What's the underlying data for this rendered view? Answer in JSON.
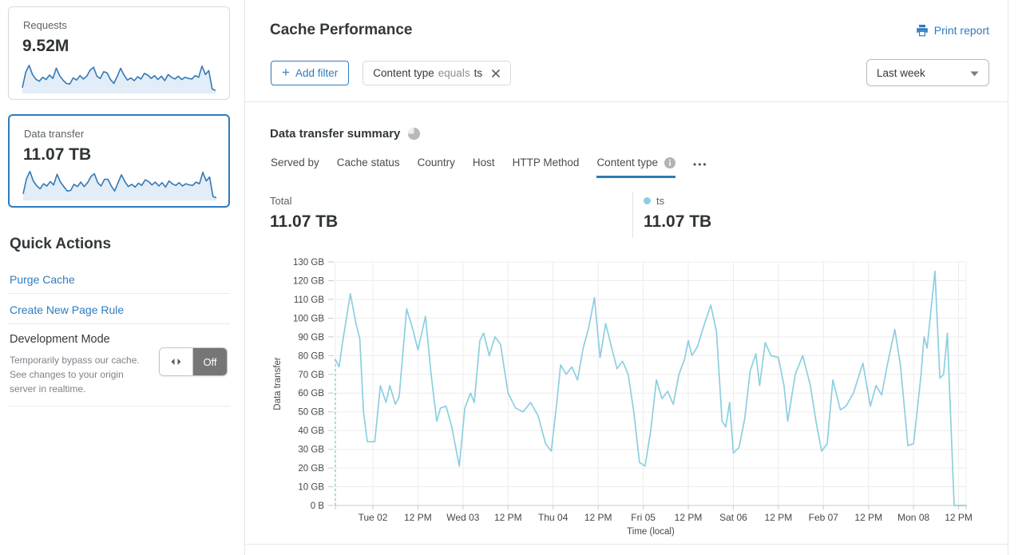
{
  "header": {
    "title": "Cache Performance",
    "print_label": "Print report"
  },
  "filters": {
    "add_label": "Add filter",
    "chips": [
      {
        "field": "Content type",
        "operator": "equals",
        "value": "ts"
      }
    ],
    "range_selected": "Last week"
  },
  "sidebar": {
    "cards": [
      {
        "label": "Requests",
        "value": "9.52M",
        "selected": false
      },
      {
        "label": "Data transfer",
        "value": "11.07 TB",
        "selected": true
      }
    ],
    "sparklines": {
      "requests": [
        15,
        70,
        95,
        62,
        45,
        38,
        52,
        44,
        60,
        48,
        85,
        58,
        42,
        30,
        28,
        50,
        42,
        58,
        46,
        56,
        78,
        88,
        56,
        48,
        72,
        68,
        44,
        30,
        56,
        84,
        60,
        42,
        50,
        40,
        54,
        46,
        66,
        60,
        48,
        58,
        44,
        56,
        40,
        62,
        52,
        46,
        56,
        44,
        52,
        48,
        46,
        58,
        52,
        92,
        62,
        76,
        10,
        5
      ],
      "data_transfer": [
        18,
        72,
        98,
        64,
        47,
        36,
        54,
        46,
        62,
        50,
        88,
        60,
        44,
        28,
        30,
        52,
        44,
        60,
        44,
        58,
        80,
        90,
        58,
        46,
        70,
        70,
        46,
        28,
        58,
        86,
        62,
        44,
        52,
        42,
        56,
        48,
        68,
        62,
        50,
        60,
        46,
        58,
        42,
        64,
        54,
        48,
        58,
        46,
        54,
        50,
        48,
        60,
        54,
        95,
        64,
        78,
        8,
        4
      ]
    },
    "quick_actions": {
      "heading": "Quick Actions",
      "links": [
        {
          "label": "Purge Cache"
        },
        {
          "label": "Create New Page Rule"
        }
      ],
      "dev_mode": {
        "title": "Development Mode",
        "description": "Temporarily bypass our cache. See changes to your origin server in realtime.",
        "toggle_state": "Off"
      }
    }
  },
  "summary": {
    "heading": "Data transfer summary",
    "tabs": [
      {
        "label": "Served by",
        "active": false
      },
      {
        "label": "Cache status",
        "active": false
      },
      {
        "label": "Country",
        "active": false
      },
      {
        "label": "Host",
        "active": false
      },
      {
        "label": "HTTP Method",
        "active": false
      },
      {
        "label": "Content type",
        "active": true,
        "has_info": true
      }
    ],
    "more_label": "•••",
    "total": {
      "label": "Total",
      "value": "11.07 TB"
    },
    "legend": [
      {
        "label": "ts",
        "value": "11.07 TB",
        "color": "#8ccfe0"
      }
    ]
  },
  "chart_data": {
    "type": "line",
    "title": "Data transfer summary",
    "xlabel": "Time (local)",
    "ylabel": "Data transfer",
    "x_range_hours": [
      0,
      168
    ],
    "ylim_gb": [
      0,
      130
    ],
    "grid": true,
    "leading_dashed_dropline": true,
    "y_ticks": [
      {
        "gb": 0,
        "label": "0 B"
      },
      {
        "gb": 10,
        "label": "10 GB"
      },
      {
        "gb": 20,
        "label": "20 GB"
      },
      {
        "gb": 30,
        "label": "30 GB"
      },
      {
        "gb": 40,
        "label": "40 GB"
      },
      {
        "gb": 50,
        "label": "50 GB"
      },
      {
        "gb": 60,
        "label": "60 GB"
      },
      {
        "gb": 70,
        "label": "70 GB"
      },
      {
        "gb": 80,
        "label": "80 GB"
      },
      {
        "gb": 90,
        "label": "90 GB"
      },
      {
        "gb": 100,
        "label": "100 GB"
      },
      {
        "gb": 110,
        "label": "110 GB"
      },
      {
        "gb": 120,
        "label": "120 GB"
      },
      {
        "gb": 130,
        "label": "130 GB"
      }
    ],
    "x_ticks": [
      {
        "hour": 10,
        "label": "Tue 02"
      },
      {
        "hour": 22,
        "label": "12 PM"
      },
      {
        "hour": 34,
        "label": "Wed 03"
      },
      {
        "hour": 46,
        "label": "12 PM"
      },
      {
        "hour": 58,
        "label": "Thu 04"
      },
      {
        "hour": 70,
        "label": "12 PM"
      },
      {
        "hour": 82,
        "label": "Fri 05"
      },
      {
        "hour": 94,
        "label": "12 PM"
      },
      {
        "hour": 106,
        "label": "Sat 06"
      },
      {
        "hour": 118,
        "label": "12 PM"
      },
      {
        "hour": 130,
        "label": "Feb 07"
      },
      {
        "hour": 142,
        "label": "12 PM"
      },
      {
        "hour": 154,
        "label": "Mon 08"
      },
      {
        "hour": 166,
        "label": "12 PM"
      }
    ],
    "series": [
      {
        "name": "ts",
        "color": "#8ccfe0",
        "points_hour_gb": [
          [
            0,
            78
          ],
          [
            1,
            74
          ],
          [
            2,
            88
          ],
          [
            4,
            113
          ],
          [
            5.5,
            97
          ],
          [
            6.5,
            89
          ],
          [
            7.5,
            50
          ],
          [
            8.5,
            34
          ],
          [
            10.5,
            34
          ],
          [
            12,
            64
          ],
          [
            13.5,
            55
          ],
          [
            14.5,
            64
          ],
          [
            16,
            54
          ],
          [
            17,
            58
          ],
          [
            19,
            105
          ],
          [
            20.5,
            95
          ],
          [
            22,
            83
          ],
          [
            24,
            101
          ],
          [
            25.5,
            70
          ],
          [
            27,
            45
          ],
          [
            28,
            52
          ],
          [
            29.5,
            53
          ],
          [
            31,
            42
          ],
          [
            33,
            21
          ],
          [
            34.5,
            52
          ],
          [
            36,
            60
          ],
          [
            37,
            55
          ],
          [
            38.5,
            88
          ],
          [
            39.5,
            92
          ],
          [
            41,
            80
          ],
          [
            42.5,
            90
          ],
          [
            44,
            86
          ],
          [
            46,
            60
          ],
          [
            48,
            52
          ],
          [
            50,
            50
          ],
          [
            52,
            55
          ],
          [
            54,
            48
          ],
          [
            56,
            33
          ],
          [
            57.5,
            29
          ],
          [
            59,
            55
          ],
          [
            60,
            75
          ],
          [
            61.5,
            70
          ],
          [
            63,
            74
          ],
          [
            64.5,
            67
          ],
          [
            66,
            84
          ],
          [
            67.5,
            95
          ],
          [
            69,
            111
          ],
          [
            70.5,
            79
          ],
          [
            72,
            97
          ],
          [
            73.5,
            85
          ],
          [
            75,
            73
          ],
          [
            76.5,
            77
          ],
          [
            78,
            70
          ],
          [
            79.5,
            50
          ],
          [
            81,
            23
          ],
          [
            82.5,
            21
          ],
          [
            84,
            40
          ],
          [
            85.5,
            67
          ],
          [
            87,
            57
          ],
          [
            88.5,
            61
          ],
          [
            90,
            54
          ],
          [
            91.5,
            70
          ],
          [
            93,
            78
          ],
          [
            94,
            88
          ],
          [
            95,
            80
          ],
          [
            96.5,
            85
          ],
          [
            98,
            95
          ],
          [
            100,
            107
          ],
          [
            101.5,
            93
          ],
          [
            103,
            45
          ],
          [
            104,
            42
          ],
          [
            105,
            55
          ],
          [
            106,
            28
          ],
          [
            107.5,
            31
          ],
          [
            109,
            46
          ],
          [
            110.5,
            72
          ],
          [
            112,
            81
          ],
          [
            113,
            64
          ],
          [
            114.5,
            87
          ],
          [
            116,
            80
          ],
          [
            118,
            79
          ],
          [
            119.5,
            64
          ],
          [
            120.5,
            45
          ],
          [
            122.5,
            70
          ],
          [
            124.5,
            80
          ],
          [
            126.5,
            64
          ],
          [
            128,
            45
          ],
          [
            129.5,
            29
          ],
          [
            131,
            33
          ],
          [
            132.5,
            67
          ],
          [
            134.5,
            51
          ],
          [
            136,
            53
          ],
          [
            138,
            60
          ],
          [
            140.5,
            76
          ],
          [
            142.5,
            53
          ],
          [
            144,
            64
          ],
          [
            145.5,
            59
          ],
          [
            147,
            75
          ],
          [
            149,
            94
          ],
          [
            150.5,
            75
          ],
          [
            152.5,
            32
          ],
          [
            154,
            33
          ],
          [
            156,
            70
          ],
          [
            156.8,
            90
          ],
          [
            157.6,
            84
          ],
          [
            159.7,
            125
          ],
          [
            161,
            68
          ],
          [
            162,
            70
          ],
          [
            163,
            92
          ],
          [
            164.8,
            0
          ],
          [
            166,
            0
          ],
          [
            168,
            0
          ]
        ]
      }
    ]
  },
  "colors": {
    "accent_blue": "#2f7bbf",
    "chart_line": "#8ccfe0",
    "spark_line": "#3579b5",
    "spark_fill": "#e2edf7",
    "grid": "#ececec",
    "axis": "#c9c9c9",
    "tick_text": "#43484c"
  }
}
